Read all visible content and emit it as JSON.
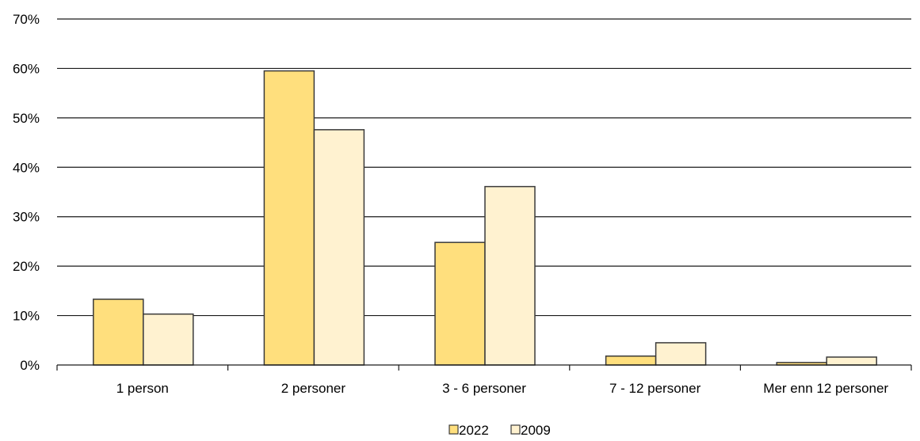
{
  "chart_data": {
    "type": "bar",
    "categories": [
      "1 person",
      "2 personer",
      "3 - 6 personer",
      "7 - 12 personer",
      "Mer enn 12 personer"
    ],
    "series": [
      {
        "name": "2022",
        "values": [
          13.3,
          59.5,
          24.8,
          1.8,
          0.5
        ],
        "color": "#FFDF7D"
      },
      {
        "name": "2009",
        "values": [
          10.3,
          47.6,
          36.1,
          4.5,
          1.6
        ],
        "color": "#FFF2D0"
      }
    ],
    "ylim": [
      0,
      70
    ],
    "yticks": [
      0,
      10,
      20,
      30,
      40,
      50,
      60,
      70
    ],
    "ytick_labels": [
      "0%",
      "10%",
      "20%",
      "30%",
      "40%",
      "50%",
      "60%",
      "70%"
    ],
    "grid": true,
    "legend_position": "bottom-center",
    "title": "",
    "xlabel": "",
    "ylabel": ""
  }
}
